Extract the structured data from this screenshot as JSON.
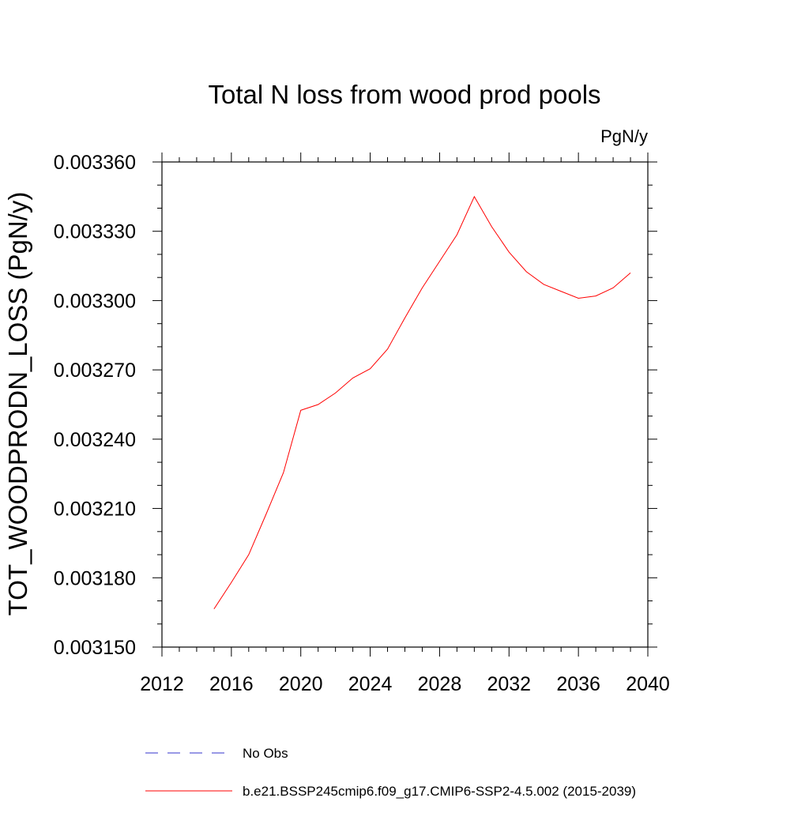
{
  "chart_data": {
    "type": "line",
    "title": "Total N loss from wood prod pools",
    "units": "PgN/y",
    "xlabel": "",
    "ylabel": "TOT_WOODPRODN_LOSS  (PgN/y)",
    "xlim": [
      2012,
      2040
    ],
    "ylim": [
      0.00315,
      0.00336
    ],
    "xticks": [
      2012,
      2016,
      2020,
      2024,
      2028,
      2032,
      2036,
      2040
    ],
    "xtick_labels": [
      "2012",
      "2016",
      "2020",
      "2024",
      "2028",
      "2032",
      "2036",
      "2040"
    ],
    "yticks": [
      0.00315,
      0.00318,
      0.00321,
      0.00324,
      0.00327,
      0.0033,
      0.00333,
      0.00336
    ],
    "ytick_labels": [
      "0.003150",
      "0.003180",
      "0.003210",
      "0.003240",
      "0.003270",
      "0.003300",
      "0.003330",
      "0.003360"
    ],
    "grid": false,
    "legend_position": "bottom",
    "series": [
      {
        "name": "No Obs",
        "color": "#3333cc",
        "dashed": true,
        "x": [],
        "values": []
      },
      {
        "name": "b.e21.BSSP245cmip6.f09_g17.CMIP6-SSP2-4.5.002 (2015-2039)",
        "color": "#ff0000",
        "dashed": false,
        "x": [
          2015,
          2016,
          2017,
          2018,
          2019,
          2020,
          2021,
          2022,
          2023,
          2024,
          2025,
          2026,
          2027,
          2028,
          2029,
          2030,
          2031,
          2032,
          2033,
          2034,
          2035,
          2036,
          2037,
          2038,
          2039
        ],
        "values": [
          0.0031665,
          0.003178,
          0.00319,
          0.0032075,
          0.0032255,
          0.0032525,
          0.003255,
          0.00326,
          0.0032665,
          0.0032705,
          0.003279,
          0.0032925,
          0.0033055,
          0.003317,
          0.0033285,
          0.003345,
          0.003332,
          0.003321,
          0.0033125,
          0.003307,
          0.003304,
          0.003301,
          0.003302,
          0.0033055,
          0.003312
        ]
      }
    ]
  }
}
